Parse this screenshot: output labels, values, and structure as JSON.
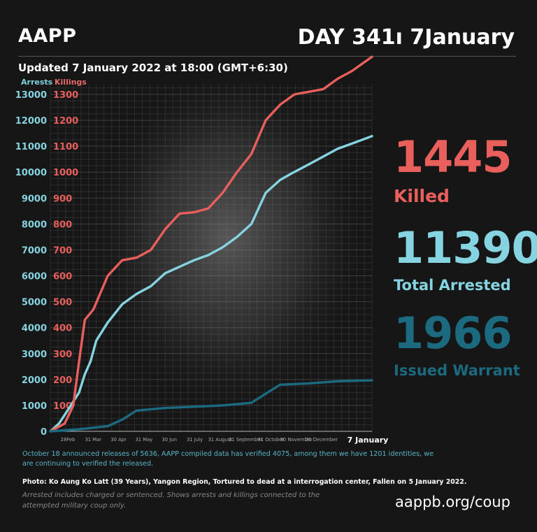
{
  "header": {
    "logo": "AAPP",
    "day_label": "DAY 341ı 7January",
    "updated": "Updated  7 January 2022 at 18:00 (GMT+6:30)"
  },
  "legend": {
    "arrests": "Arrests",
    "killings": "Killings"
  },
  "stats": {
    "killed_value": "1445",
    "killed_label": "Killed",
    "arrested_value": "11390",
    "arrested_label": "Total Arrested",
    "warrant_value": "1966",
    "warrant_label": "Issued Warrant"
  },
  "notes": {
    "verified": "October 18 announced releases of 5636, AAPP compiled data has verified 4075, among them we have 1201 identities, we are continuing to verified the released.",
    "photo": "Photo: Ko Aung Ko Latt (39 Years), Yangon Region, Tortured to dead at a interrogation center, Fallen on 5 January 2022.",
    "disclaimer": "Arrested includes charged or sentenced. Shows arrests and killings connected to the attempted military coup only.",
    "url": "aappb.org/coup"
  },
  "colors": {
    "arrests": "#86d3e1",
    "killings": "#e85f5c",
    "warrants": "#1b6a80",
    "background": "#161616"
  },
  "chart_data": {
    "type": "line",
    "x_ticks": [
      "28Feb",
      "31 Mar",
      "30 Apr",
      "31 May",
      "30 Jun",
      "31 July",
      "31 August",
      "31 September",
      "31 October",
      "30 November",
      "31 December",
      "7 January"
    ],
    "y_left_ticks": [
      0,
      1000,
      2000,
      3000,
      4000,
      5000,
      6000,
      7000,
      8000,
      9000,
      10000,
      11000,
      12000,
      13000
    ],
    "y_right_ticks": [
      0,
      100,
      200,
      300,
      400,
      500,
      600,
      700,
      800,
      900,
      1000,
      1100,
      1200,
      1300
    ],
    "y_left_range": [
      0,
      13500
    ],
    "y_right_range": [
      0,
      1350
    ],
    "x_range": [
      0,
      11.2
    ],
    "grid": true,
    "series": [
      {
        "name": "Arrests",
        "axis": "left",
        "x": [
          0,
          0.3,
          0.6,
          1,
          1.2,
          1.4,
          1.6,
          2,
          2.5,
          3,
          3.5,
          4,
          4.4,
          5,
          5.5,
          6,
          6.5,
          7,
          7.5,
          8,
          8.4,
          9,
          9.5,
          10,
          10.5,
          11.2
        ],
        "values": [
          0,
          300,
          800,
          1500,
          2200,
          2700,
          3500,
          4200,
          4900,
          5300,
          5600,
          6100,
          6300,
          6600,
          6800,
          7100,
          7500,
          8000,
          9200,
          9700,
          9950,
          10300,
          10600,
          10900,
          11100,
          11390
        ]
      },
      {
        "name": "Killings",
        "axis": "right",
        "x": [
          0,
          0.5,
          0.8,
          1,
          1.2,
          1.5,
          2,
          2.5,
          3,
          3.5,
          4,
          4.5,
          5,
          5.5,
          6,
          6.5,
          7,
          7.5,
          8,
          8.5,
          9,
          9.5,
          10,
          10.5,
          11.2
        ],
        "values": [
          0,
          30,
          100,
          270,
          430,
          470,
          600,
          660,
          670,
          700,
          780,
          840,
          845,
          860,
          920,
          1000,
          1070,
          1200,
          1260,
          1300,
          1310,
          1320,
          1360,
          1390,
          1445
        ]
      },
      {
        "name": "Issued Warrant",
        "axis": "left",
        "x": [
          0,
          1,
          2,
          2.5,
          3,
          4,
          5,
          6,
          7,
          8,
          9,
          10,
          11.2
        ],
        "values": [
          0,
          80,
          200,
          450,
          800,
          900,
          950,
          1000,
          1100,
          1800,
          1850,
          1930,
          1966
        ]
      }
    ]
  }
}
